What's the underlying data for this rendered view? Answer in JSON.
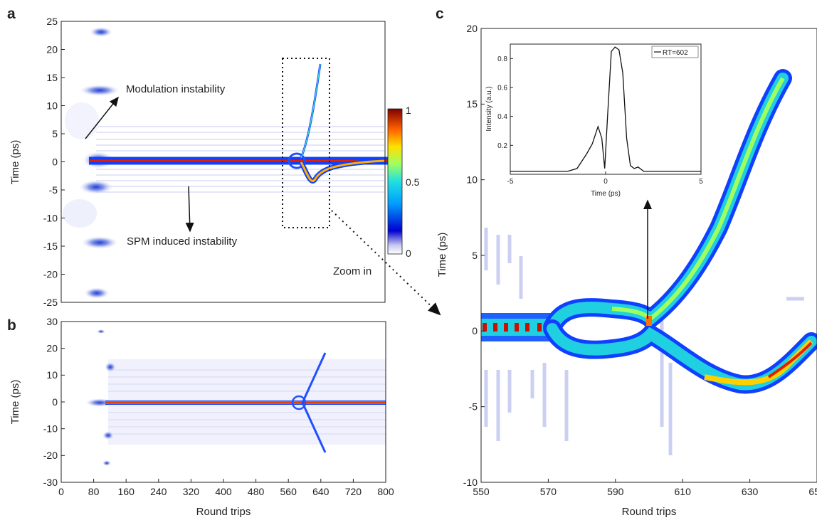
{
  "panels": {
    "a": {
      "letter": "a",
      "ylabel": "Time (ps)",
      "yticks": [
        "25",
        "20",
        "15",
        "10",
        "5",
        "0",
        "-5",
        "-10",
        "-15",
        "-20",
        "-25"
      ],
      "annotations": {
        "mi": "Modulation instability",
        "spm": "SPM induced instability",
        "zoom": "Zoom in"
      },
      "colorbar": {
        "ticks": [
          "1",
          "0.5",
          "0"
        ]
      }
    },
    "b": {
      "letter": "b",
      "ylabel": "Time (ps)",
      "xlabel": "Round trips",
      "yticks": [
        "30",
        "20",
        "10",
        "0",
        "-10",
        "-20",
        "-30"
      ],
      "xticks": [
        "0",
        "80",
        "160",
        "240",
        "320",
        "400",
        "480",
        "560",
        "640",
        "720",
        "800"
      ]
    },
    "c": {
      "letter": "c",
      "ylabel": "Time (ps)",
      "xlabel": "Round trips",
      "yticks": [
        "20",
        "15",
        "10",
        "5",
        "0",
        "-5",
        "-10"
      ],
      "xticks": [
        "550",
        "570",
        "590",
        "610",
        "630",
        "650"
      ],
      "inset": {
        "ylabel": "Intensity (a.u.)",
        "xlabel": "Time (ps)",
        "legend": "RT=602",
        "yticks": [
          "0.8",
          "0.6",
          "0.4",
          "0.2"
        ],
        "xticks": [
          "-5",
          "0",
          "5"
        ]
      }
    }
  },
  "chart_data": [
    {
      "type": "heatmap",
      "panel": "a",
      "title": "",
      "xlabel": "",
      "ylabel": "Time (ps)",
      "xlim": [
        0,
        800
      ],
      "ylim": [
        -25,
        25
      ],
      "colorbar_range": [
        0,
        1
      ],
      "main_trace": [
        [
          120,
          0
        ],
        [
          560,
          0
        ],
        [
          585,
          0
        ],
        [
          600,
          -2
        ],
        [
          610,
          -3.8
        ],
        [
          640,
          -0.5
        ],
        [
          800,
          0
        ]
      ],
      "branch_trace": [
        [
          585,
          1
        ],
        [
          600,
          5
        ],
        [
          615,
          10
        ],
        [
          630,
          17
        ]
      ],
      "mi_spots": [
        [
          65,
          22
        ],
        [
          70,
          12.5
        ],
        [
          80,
          0
        ],
        [
          70,
          -4
        ],
        [
          65,
          -14.5
        ],
        [
          55,
          -23
        ]
      ]
    },
    {
      "type": "heatmap",
      "panel": "b",
      "xlabel": "Round trips",
      "ylabel": "Time (ps)",
      "xlim": [
        0,
        800
      ],
      "ylim": [
        -30,
        30
      ],
      "main_trace": [
        [
          100,
          0
        ],
        [
          800,
          0
        ]
      ],
      "branches": [
        [
          [
            590,
            0
          ],
          [
            650,
            19
          ]
        ],
        [
          [
            590,
            0
          ],
          [
            650,
            -19
          ]
        ]
      ],
      "mi_spots": [
        [
          70,
          27
        ],
        [
          70,
          13
        ],
        [
          70,
          0
        ],
        [
          70,
          -12
        ],
        [
          70,
          -23
        ]
      ]
    },
    {
      "type": "heatmap",
      "panel": "c",
      "xlabel": "Round trips",
      "ylabel": "Time (ps)",
      "xlim": [
        550,
        650
      ],
      "ylim": [
        -10,
        20
      ],
      "upper_branch": [
        [
          572,
          0.3
        ],
        [
          580,
          1.4
        ],
        [
          590,
          1.5
        ],
        [
          602,
          0.8
        ],
        [
          610,
          3.5
        ],
        [
          620,
          6.2
        ],
        [
          630,
          9.5
        ],
        [
          640,
          14
        ],
        [
          648,
          18.5
        ]
      ],
      "lower_branch": [
        [
          572,
          -0.3
        ],
        [
          580,
          -1.2
        ],
        [
          590,
          -1.4
        ],
        [
          602,
          -0.7
        ],
        [
          610,
          -1.7
        ],
        [
          620,
          -3
        ],
        [
          628,
          -3.5
        ],
        [
          640,
          -2.5
        ],
        [
          650,
          -0.5
        ]
      ],
      "pre_trace": [
        [
          550,
          0
        ],
        [
          572,
          0
        ]
      ]
    },
    {
      "type": "line",
      "panel": "c-inset",
      "xlabel": "Time (ps)",
      "ylabel": "Intensity (a.u.)",
      "xlim": [
        -5,
        5
      ],
      "ylim": [
        0,
        0.9
      ],
      "series": [
        {
          "name": "RT=602",
          "x": [
            -5,
            -2,
            -1.5,
            -1,
            -0.7,
            -0.4,
            -0.2,
            -0.05,
            0.1,
            0.3,
            0.5,
            0.7,
            0.9,
            1.1,
            1.3,
            1.5,
            1.7,
            2,
            3,
            5
          ],
          "y": [
            0.02,
            0.02,
            0.04,
            0.14,
            0.21,
            0.33,
            0.25,
            0.04,
            0.4,
            0.85,
            0.88,
            0.86,
            0.7,
            0.25,
            0.06,
            0.04,
            0.05,
            0.02,
            0.02,
            0.02
          ]
        }
      ]
    }
  ]
}
